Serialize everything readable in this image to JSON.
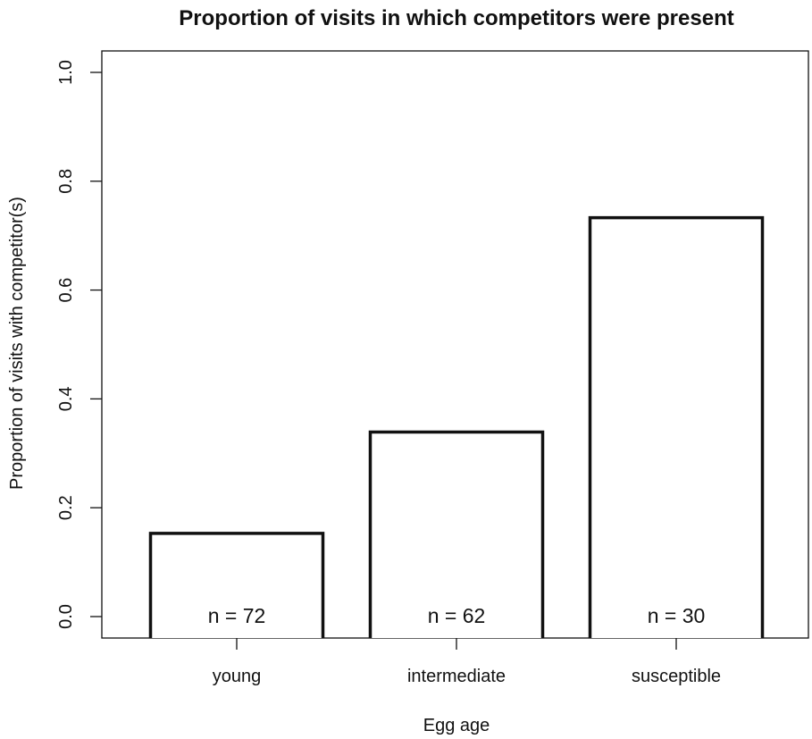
{
  "chart_data": {
    "type": "bar",
    "title": "Proportion of visits in which competitors were present",
    "xlabel": "Egg age",
    "ylabel": "Proportion of visits with competitor(s)",
    "categories": [
      "young",
      "intermediate",
      "susceptible"
    ],
    "values": [
      0.153,
      0.339,
      0.733
    ],
    "bar_labels": [
      "n = 72",
      "n = 62",
      "n = 30"
    ],
    "ylim": [
      0.0,
      1.0
    ],
    "yticks": [
      "0.0",
      "0.2",
      "0.4",
      "0.6",
      "0.8",
      "1.0"
    ],
    "grid": false,
    "legend": "none",
    "bar_fill": "#ffffff",
    "bar_stroke": "#111111"
  }
}
